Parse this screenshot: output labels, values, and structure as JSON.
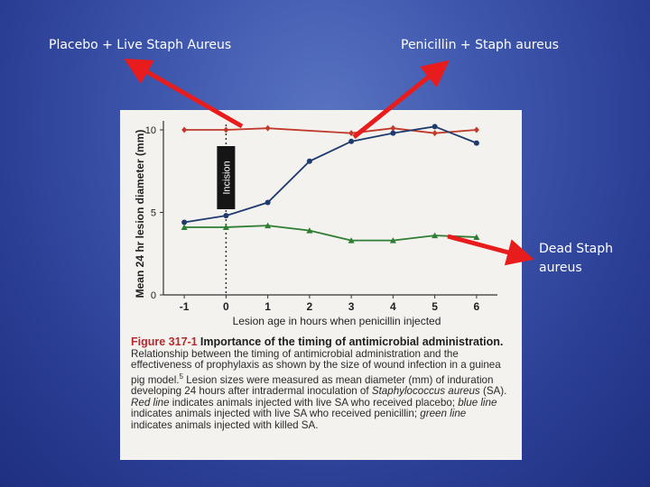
{
  "slide": {
    "label_placebo": "Placebo + Live Staph Aureus",
    "label_penicillin": "Penicillin + Staph aureus",
    "label_dead": "Dead Staph aureus"
  },
  "chart_data": {
    "type": "line",
    "xlabel": "Lesion age in hours when penicillin injected",
    "ylabel": "Mean 24 hr lesion diameter (mm)",
    "x_ticks": [
      "-1",
      "0",
      "1",
      "2",
      "3",
      "4",
      "5",
      "6"
    ],
    "y_ticks": [
      "0",
      "5",
      "10"
    ],
    "xlim": [
      -1.5,
      6.5
    ],
    "ylim": [
      0,
      10
    ],
    "annotation": "Incision",
    "annotation_x": 0,
    "grid": false,
    "series": [
      {
        "color": "#c0392b",
        "marker": "diamond",
        "x": [
          -1,
          0,
          1,
          3,
          4,
          5,
          6
        ],
        "y": [
          10.0,
          10.0,
          10.1,
          9.8,
          10.1,
          9.8,
          10.0
        ]
      },
      {
        "color": "#1f3a6e",
        "marker": "circle",
        "x": [
          -1,
          0,
          1,
          2,
          3,
          4,
          5,
          6
        ],
        "y": [
          4.4,
          4.8,
          5.6,
          8.1,
          9.3,
          9.8,
          10.2,
          9.2
        ]
      },
      {
        "color": "#2e7d32",
        "marker": "triangle",
        "x": [
          -1,
          0,
          1,
          2,
          3,
          4,
          5,
          6
        ],
        "y": [
          4.1,
          4.1,
          4.2,
          3.9,
          3.3,
          3.3,
          3.6,
          3.5
        ]
      }
    ]
  },
  "caption": {
    "figure": "Figure 317-1",
    "title": "Importance of the timing of antimicrobial administration.",
    "body": "Relationship between the timing of antimicrobial administration and the effectiveness of prophylaxis as shown by the size of wound infection in a guinea pig model.",
    "superscript": "5",
    "body2": "Lesion sizes were measured as mean diameter (mm) of induration developing 24 hours after intradermal inoculation of",
    "organism": "Staphylococcus aureus",
    "body3": "(SA).",
    "red_line": "Red line",
    "body4": "indicates animals injected with live SA who received placebo;",
    "blue_line": "blue line",
    "body5": "indicates animals injected with live SA who received penicillin;",
    "green_line": "green line",
    "body6": "indicates animals injected with killed SA."
  }
}
